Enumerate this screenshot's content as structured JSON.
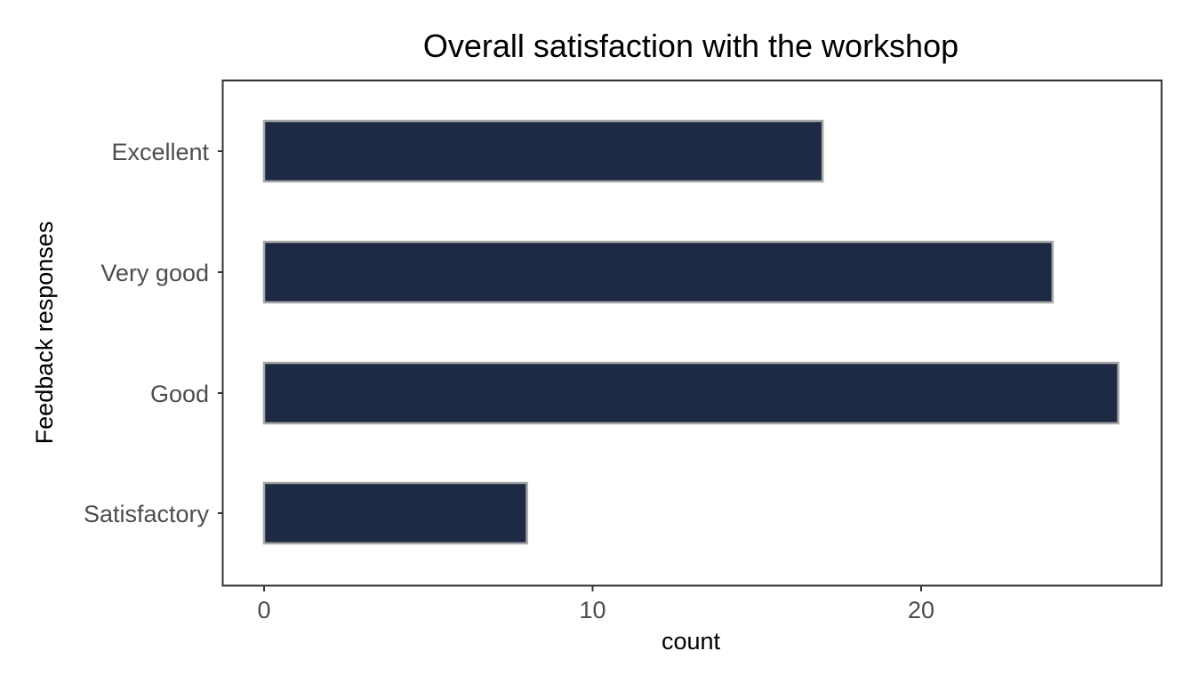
{
  "chart_data": {
    "type": "bar",
    "orientation": "horizontal",
    "title": "Overall satisfaction with the workshop",
    "xlabel": "count",
    "ylabel": "Feedback responses",
    "categories": [
      "Excellent",
      "Very good",
      "Good",
      "Satisfactory"
    ],
    "values": [
      17,
      24,
      26,
      8
    ],
    "xlim": [
      -1.26,
      27.3
    ],
    "x_ticks": [
      0,
      10,
      20
    ],
    "x_tick_labels": [
      "0",
      "10",
      "20"
    ],
    "grid": false,
    "legend": "none",
    "colors": {
      "bar_fill": "#1e2a44",
      "bar_outline": "#a6a6a8",
      "panel_border": "#333333",
      "tick_label": "#4d4d4d",
      "text": "#000000"
    }
  }
}
